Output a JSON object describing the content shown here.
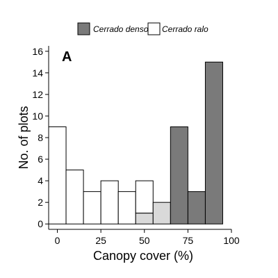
{
  "chart_data": {
    "type": "bar",
    "panel_label": "A",
    "xlabel": "Canopy cover (%)",
    "ylabel": "No. of plots",
    "xlim": [
      -5,
      100
    ],
    "ylim": [
      -0.5,
      16.5
    ],
    "x_ticks": [
      0,
      25,
      50,
      75,
      100
    ],
    "y_ticks": [
      0,
      2,
      4,
      6,
      8,
      10,
      12,
      14,
      16
    ],
    "bin_width": 10,
    "grid": false,
    "legend_position": "top",
    "legend": [
      {
        "label": "Cerrado denso",
        "color": "#7a7a7a"
      },
      {
        "label": "Cerrado ralo",
        "color": "#ffffff"
      }
    ],
    "overlap_color": "#d9d9d9",
    "bin_centers": [
      0,
      10,
      20,
      30,
      40,
      50,
      60,
      70,
      80,
      90
    ],
    "series": [
      {
        "name": "Cerrado ralo",
        "values": [
          9,
          5,
          3,
          4,
          3,
          4,
          2,
          0,
          0,
          0
        ]
      },
      {
        "name": "Cerrado denso",
        "values": [
          0,
          0,
          0,
          0,
          0,
          1,
          2,
          9,
          3,
          15
        ]
      }
    ]
  }
}
